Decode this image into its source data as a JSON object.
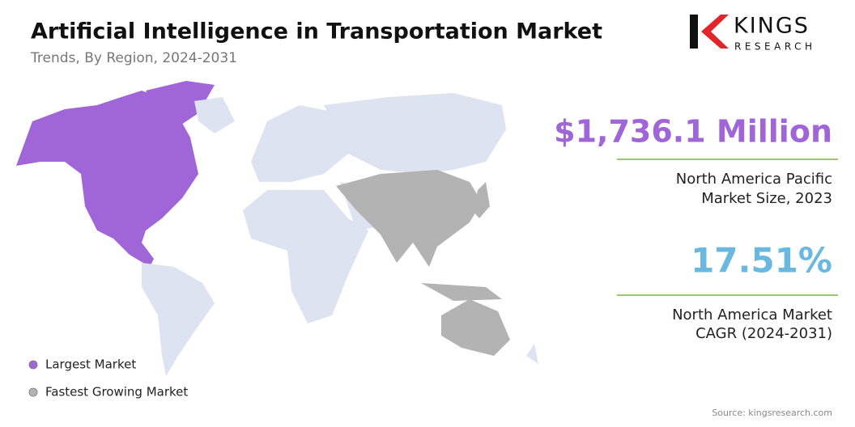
{
  "header": {
    "title": "Artificial Intelligence in Transportation Market",
    "subtitle": "Trends, By Region, 2024-2031"
  },
  "logo": {
    "name": "KINGS",
    "tagline": "RESEARCH"
  },
  "stats": [
    {
      "value": "$1,736.1 Million",
      "label": [
        "North America Pacific",
        "Market Size, 2023"
      ]
    },
    {
      "value": "17.51%",
      "label": [
        "North America Market",
        "CAGR (2024-2031)"
      ]
    }
  ],
  "legend": [
    "Largest Market",
    "Fastest Growing Market"
  ],
  "source": "Source: kingsresearch.com"
}
